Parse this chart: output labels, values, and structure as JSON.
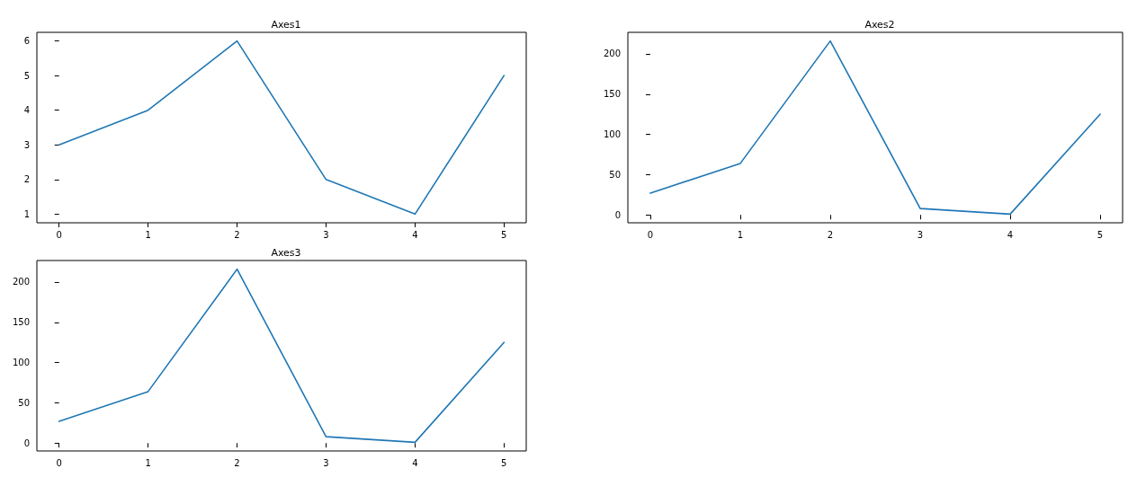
{
  "chart_data": [
    {
      "type": "line",
      "title": "Axes1",
      "x": [
        0,
        1,
        2,
        3,
        4,
        5
      ],
      "values": [
        3,
        4,
        6,
        2,
        1,
        5
      ],
      "color": "#1f77b4",
      "xlim": [
        -0.25,
        5.25
      ],
      "xticks": [
        0,
        1,
        2,
        3,
        4,
        5
      ],
      "ylim": [
        0.75,
        6.25
      ],
      "yticks": [
        1,
        2,
        3,
        4,
        5,
        6
      ]
    },
    {
      "type": "line",
      "title": "Axes2",
      "x": [
        0,
        1,
        2,
        3,
        4,
        5
      ],
      "values": [
        27,
        64,
        216,
        8,
        1,
        125
      ],
      "color": "#1f77b4",
      "xlim": [
        -0.25,
        5.25
      ],
      "xticks": [
        0,
        1,
        2,
        3,
        4,
        5
      ],
      "ylim": [
        -9.75,
        226.75
      ],
      "yticks": [
        0,
        50,
        100,
        150,
        200
      ]
    },
    {
      "type": "line",
      "title": "Axes3",
      "x": [
        0,
        1,
        2,
        3,
        4,
        5
      ],
      "values": [
        27,
        64,
        216,
        8,
        1,
        125
      ],
      "color": "#1f77b4",
      "xlim": [
        -0.25,
        5.25
      ],
      "xticks": [
        0,
        1,
        2,
        3,
        4,
        5
      ],
      "ylim": [
        -9.75,
        226.75
      ],
      "yticks": [
        0,
        50,
        100,
        150,
        200
      ]
    }
  ]
}
